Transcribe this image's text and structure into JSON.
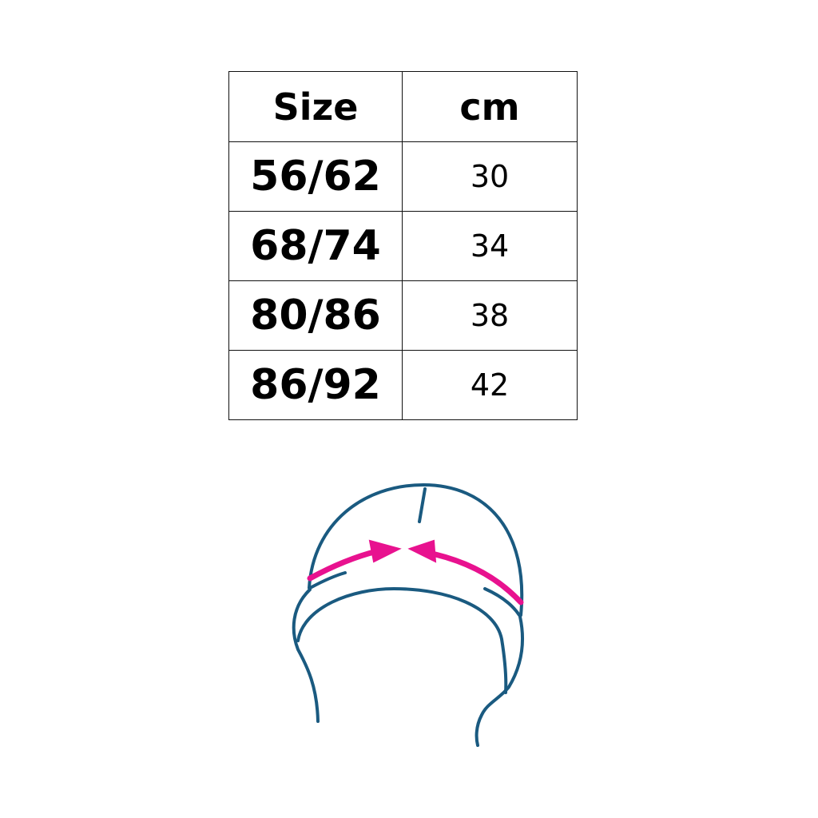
{
  "size_table": {
    "headers": [
      "Size",
      "cm"
    ],
    "rows": [
      {
        "size": "56/62",
        "cm": "30"
      },
      {
        "size": "68/74",
        "cm": "34"
      },
      {
        "size": "80/86",
        "cm": "38"
      },
      {
        "size": "86/92",
        "cm": "42"
      }
    ]
  },
  "illustration": {
    "subject": "baby-hat-measurement",
    "line_color": "#1a5a80",
    "arrow_color": "#e8128f"
  }
}
